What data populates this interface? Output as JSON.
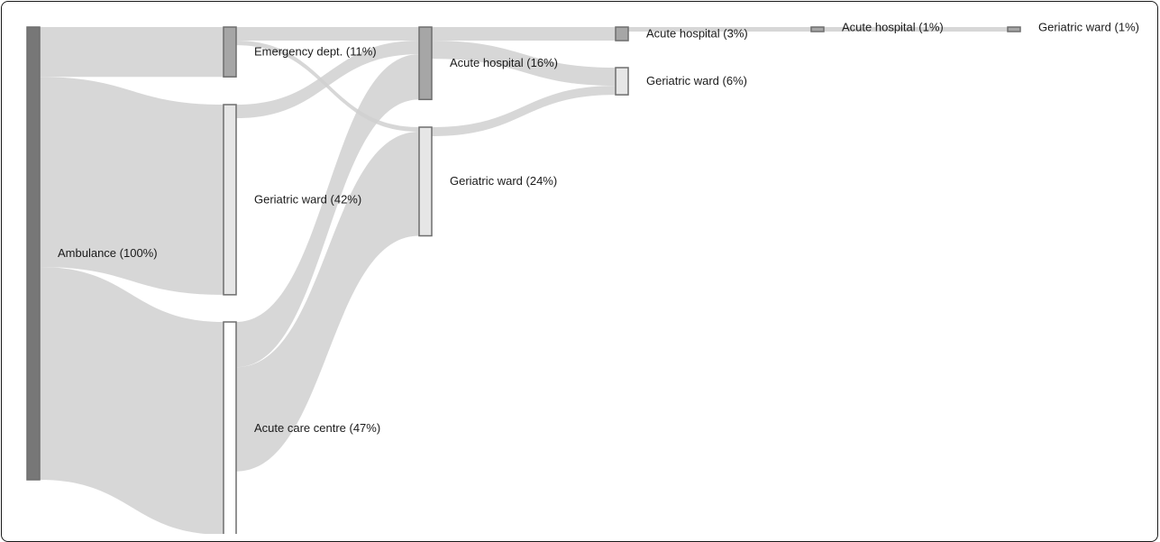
{
  "chart_data": {
    "type": "sankey",
    "unit": "%",
    "nodes": [
      {
        "id": "ambulance",
        "label": "Ambulance (100%)",
        "stage": 0,
        "fill": "#777777"
      },
      {
        "id": "ed1",
        "label": "Emergency dept. (11%)",
        "stage": 1,
        "fill": "#a6a6a6"
      },
      {
        "id": "gw1",
        "label": "Geriatric ward (42%)",
        "stage": 1,
        "fill": "#e6e6e6"
      },
      {
        "id": "acc1",
        "label": "Acute care centre (47%)",
        "stage": 1,
        "fill": "#ffffff"
      },
      {
        "id": "ah2",
        "label": "Acute hospital (16%)",
        "stage": 2,
        "fill": "#a6a6a6"
      },
      {
        "id": "gw2",
        "label": "Geriatric ward (24%)",
        "stage": 2,
        "fill": "#e6e6e6"
      },
      {
        "id": "ah3",
        "label": "Acute hospital (3%)",
        "stage": 3,
        "fill": "#a6a6a6"
      },
      {
        "id": "gw3",
        "label": "Geriatric ward (6%)",
        "stage": 3,
        "fill": "#e6e6e6"
      },
      {
        "id": "ah4",
        "label": "Acute hospital (1%)",
        "stage": 4,
        "fill": "#a6a6a6"
      },
      {
        "id": "gw5",
        "label": "Geriatric ward (1%)",
        "stage": 5,
        "fill": "#a6a6a6"
      }
    ],
    "links": [
      {
        "source": "ambulance",
        "target": "ed1",
        "value": 11
      },
      {
        "source": "ambulance",
        "target": "gw1",
        "value": 42
      },
      {
        "source": "ambulance",
        "target": "acc1",
        "value": 47
      },
      {
        "source": "ed1",
        "target": "ah2",
        "value": 3
      },
      {
        "source": "ed1",
        "target": "gw2",
        "value": 1
      },
      {
        "source": "gw1",
        "target": "ah2",
        "value": 3
      },
      {
        "source": "acc1",
        "target": "ah2",
        "value": 10
      },
      {
        "source": "acc1",
        "target": "gw2",
        "value": 23
      },
      {
        "source": "ah2",
        "target": "ah3",
        "value": 3
      },
      {
        "source": "ah2",
        "target": "gw3",
        "value": 4
      },
      {
        "source": "gw2",
        "target": "gw3",
        "value": 2
      },
      {
        "source": "ah3",
        "target": "ah4",
        "value": 1
      },
      {
        "source": "ah4",
        "target": "gw5",
        "value": 1
      }
    ],
    "colors": {
      "link": "#d0d0d0",
      "link_dark": "#8c8c8c",
      "node_stroke": "#6e6e6e"
    }
  }
}
